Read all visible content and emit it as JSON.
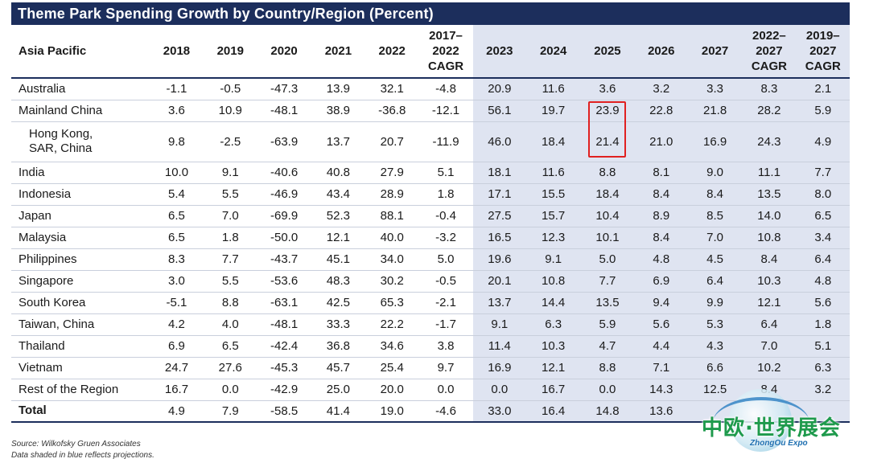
{
  "title": "Theme Park Spending Growth by Country/Region (Percent)",
  "columns": [
    "Asia Pacific",
    "2018",
    "2019",
    "2020",
    "2021",
    "2022",
    "2017–\n2022\nCAGR",
    "2023",
    "2024",
    "2025",
    "2026",
    "2027",
    "2022–\n2027\nCAGR",
    "2019–\n2027\nCAGR"
  ],
  "rows": [
    {
      "name": "Australia",
      "values": [
        "-1.1",
        "-0.5",
        "-47.3",
        "13.9",
        "32.1",
        "-4.8",
        "20.9",
        "11.6",
        "3.6",
        "3.2",
        "3.3",
        "8.3",
        "2.1"
      ]
    },
    {
      "name": "Mainland China",
      "values": [
        "3.6",
        "10.9",
        "-48.1",
        "38.9",
        "-36.8",
        "-12.1",
        "56.1",
        "19.7",
        "23.9",
        "22.8",
        "21.8",
        "28.2",
        "5.9"
      ]
    },
    {
      "name": "Hong Kong,\nSAR, China",
      "values": [
        "9.8",
        "-2.5",
        "-63.9",
        "13.7",
        "20.7",
        "-11.9",
        "46.0",
        "18.4",
        "21.4",
        "21.0",
        "16.9",
        "24.3",
        "4.9"
      ]
    },
    {
      "name": "India",
      "values": [
        "10.0",
        "9.1",
        "-40.6",
        "40.8",
        "27.9",
        "5.1",
        "18.1",
        "11.6",
        "8.8",
        "8.1",
        "9.0",
        "11.1",
        "7.7"
      ]
    },
    {
      "name": "Indonesia",
      "values": [
        "5.4",
        "5.5",
        "-46.9",
        "43.4",
        "28.9",
        "1.8",
        "17.1",
        "15.5",
        "18.4",
        "8.4",
        "8.4",
        "13.5",
        "8.0"
      ]
    },
    {
      "name": "Japan",
      "values": [
        "6.5",
        "7.0",
        "-69.9",
        "52.3",
        "88.1",
        "-0.4",
        "27.5",
        "15.7",
        "10.4",
        "8.9",
        "8.5",
        "14.0",
        "6.5"
      ]
    },
    {
      "name": "Malaysia",
      "values": [
        "6.5",
        "1.8",
        "-50.0",
        "12.1",
        "40.0",
        "-3.2",
        "16.5",
        "12.3",
        "10.1",
        "8.4",
        "7.0",
        "10.8",
        "3.4"
      ]
    },
    {
      "name": "Philippines",
      "values": [
        "8.3",
        "7.7",
        "-43.7",
        "45.1",
        "34.0",
        "5.0",
        "19.6",
        "9.1",
        "5.0",
        "4.8",
        "4.5",
        "8.4",
        "6.4"
      ]
    },
    {
      "name": "Singapore",
      "values": [
        "3.0",
        "5.5",
        "-53.6",
        "48.3",
        "30.2",
        "-0.5",
        "20.1",
        "10.8",
        "7.7",
        "6.9",
        "6.4",
        "10.3",
        "4.8"
      ]
    },
    {
      "name": "South Korea",
      "values": [
        "-5.1",
        "8.8",
        "-63.1",
        "42.5",
        "65.3",
        "-2.1",
        "13.7",
        "14.4",
        "13.5",
        "9.4",
        "9.9",
        "12.1",
        "5.6"
      ]
    },
    {
      "name": "Taiwan, China",
      "values": [
        "4.2",
        "4.0",
        "-48.1",
        "33.3",
        "22.2",
        "-1.7",
        "9.1",
        "6.3",
        "5.9",
        "5.6",
        "5.3",
        "6.4",
        "1.8"
      ]
    },
    {
      "name": "Thailand",
      "values": [
        "6.9",
        "6.5",
        "-42.4",
        "36.8",
        "34.6",
        "3.8",
        "11.4",
        "10.3",
        "4.7",
        "4.4",
        "4.3",
        "7.0",
        "5.1"
      ]
    },
    {
      "name": "Vietnam",
      "values": [
        "24.7",
        "27.6",
        "-45.3",
        "45.7",
        "25.4",
        "9.7",
        "16.9",
        "12.1",
        "8.8",
        "7.1",
        "6.6",
        "10.2",
        "6.3"
      ]
    },
    {
      "name": "Rest of the Region",
      "values": [
        "16.7",
        "0.0",
        "-42.9",
        "25.0",
        "20.0",
        "0.0",
        "0.0",
        "16.7",
        "0.0",
        "14.3",
        "12.5",
        "8.4",
        "3.2"
      ]
    },
    {
      "name": "Total",
      "values": [
        "4.9",
        "7.9",
        "-58.5",
        "41.4",
        "19.0",
        "-4.6",
        "33.0",
        "16.4",
        "14.8",
        "13.6",
        "",
        "",
        ""
      ]
    }
  ],
  "footnotes": {
    "source": "Source: Wilkofsky Gruen Associates",
    "note": "Data shaded in blue reflects projections."
  },
  "watermark": {
    "chinese": "中欧·世界展会",
    "english": "ZhongOu Expo"
  },
  "colors": {
    "header_navy": "#1c2e5c",
    "projection_shade": "#dfe4f1",
    "highlight_red": "#e02020",
    "logo_green": "#1e9a4c"
  }
}
